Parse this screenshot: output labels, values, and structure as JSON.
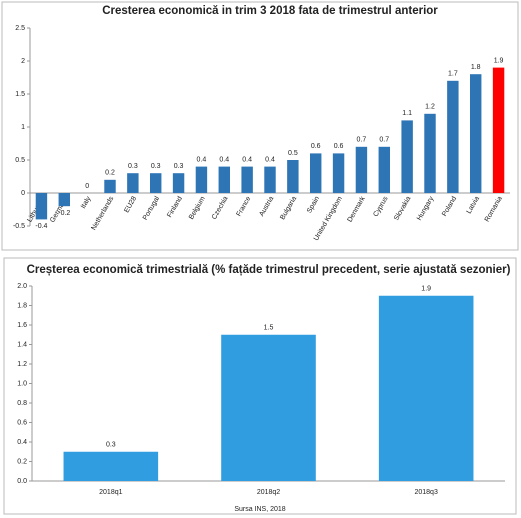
{
  "chart_data": [
    {
      "type": "bar",
      "title": "Cresterea economică in trim 3 2018 fata de trimestrul anterior",
      "categories": [
        "Lithuania",
        "Germany",
        "Italy",
        "Netherlands",
        "EU28",
        "Portugal",
        "Finland",
        "Belgium",
        "Czechia",
        "France",
        "Austria",
        "Bulgaria",
        "Spain",
        "United Kingdom",
        "Denmark",
        "Cyprus",
        "Slovakia",
        "Hungary",
        "Poland",
        "Latvia",
        "Romania"
      ],
      "values": [
        -0.4,
        -0.2,
        0,
        0.2,
        0.3,
        0.3,
        0.3,
        0.4,
        0.4,
        0.4,
        0.4,
        0.5,
        0.6,
        0.6,
        0.7,
        0.7,
        1.1,
        1.2,
        1.7,
        1.8,
        1.9
      ],
      "colors": [
        "#2e75b6",
        "#2e75b6",
        "#2e75b6",
        "#2e75b6",
        "#2e75b6",
        "#2e75b6",
        "#2e75b6",
        "#2e75b6",
        "#2e75b6",
        "#2e75b6",
        "#2e75b6",
        "#2e75b6",
        "#2e75b6",
        "#2e75b6",
        "#2e75b6",
        "#2e75b6",
        "#2e75b6",
        "#2e75b6",
        "#2e75b6",
        "#2e75b6",
        "#ff0000"
      ],
      "ylim": [
        -0.5,
        2.5
      ],
      "yticks": [
        -0.5,
        0,
        0.5,
        1,
        1.5,
        2,
        2.5
      ],
      "grid": false
    },
    {
      "type": "bar",
      "title": "Creșterea economică trimestrială (% fațăde trimestrul precedent, serie ajustată sezonier)",
      "categories": [
        "2018q1",
        "2018q2",
        "2018q3"
      ],
      "values": [
        0.3,
        1.5,
        1.9
      ],
      "color": "#2f9de0",
      "ylim": [
        0,
        2
      ],
      "yticks": [
        {
          "value": 0,
          "label": "0.0"
        },
        0.2,
        0.4,
        0.6,
        0.8,
        {
          "value": 1,
          "label": "1.0"
        },
        1.2,
        1.4,
        1.6,
        1.8,
        {
          "value": 2,
          "label": "2.0"
        }
      ],
      "grid": false
    }
  ],
  "source": "Sursa INS, 2018"
}
